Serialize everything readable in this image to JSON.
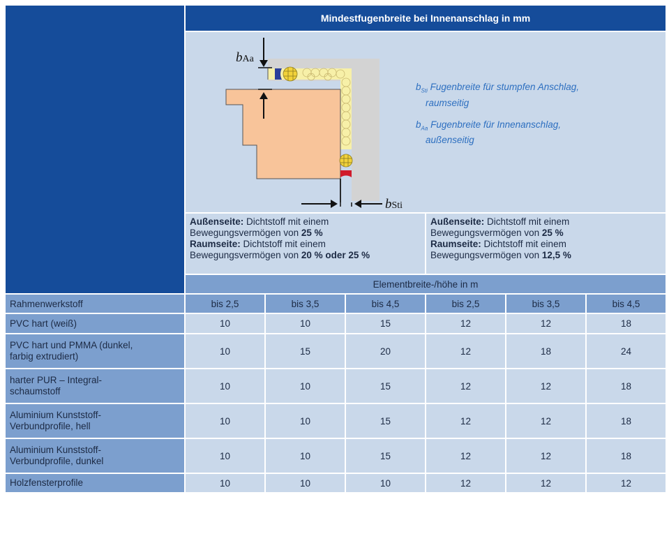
{
  "title": "Mindestfugenbreite bei Innenanschlag in mm",
  "figure": {
    "label_aa_base": "b",
    "label_aa_sub": "Aa",
    "label_sti_base": "b",
    "label_sti_sub": "Sti",
    "legend": [
      {
        "base": "b",
        "sub": "Sti",
        "line1": "Fugenbreite für stumpfen Anschlag,",
        "line2": "raumseitig"
      },
      {
        "base": "b",
        "sub": "Aa",
        "line1": "Fugenbreite für Innenanschlag,",
        "line2": "außenseitig"
      }
    ]
  },
  "groups": [
    {
      "out_label": "Außenseite:",
      "out_text": " Dichtstoff mit einem",
      "out_text2": "Bewegungsvermögen von ",
      "out_value": "25 %",
      "in_label": "Raumseite:",
      "in_text": " Dichtstoff mit einem",
      "in_text2": "Bewegungsvermögen von ",
      "in_value": "20 % oder 25 %"
    },
    {
      "out_label": "Außenseite:",
      "out_text": " Dichtstoff mit einem",
      "out_text2": "Bewegungsvermögen von ",
      "out_value": "25 %",
      "in_label": "Raumseite:",
      "in_text": " Dichtstoff mit einem",
      "in_text2": "Bewegungsvermögen von ",
      "in_value": "12,5 %"
    }
  ],
  "subheader": "Elementbreite-/höhe in m",
  "header": {
    "label": "Rahmenwerkstoff",
    "cols": [
      "bis 2,5",
      "bis 3,5",
      "bis 4,5",
      "bis 2,5",
      "bis 3,5",
      "bis 4,5"
    ]
  },
  "rows": [
    {
      "line1": "PVC hart (weiß)",
      "line2": "",
      "values": [
        "10",
        "10",
        "15",
        "12",
        "12",
        "18"
      ]
    },
    {
      "line1": "PVC hart und PMMA (dunkel,",
      "line2": "farbig extrudiert)",
      "values": [
        "10",
        "15",
        "20",
        "12",
        "18",
        "24"
      ]
    },
    {
      "line1": "harter PUR – Integral-",
      "line2": "schaumstoff",
      "values": [
        "10",
        "10",
        "15",
        "12",
        "12",
        "18"
      ]
    },
    {
      "line1": "Aluminium Kunststoff-",
      "line2": "Verbundprofile, hell",
      "values": [
        "10",
        "10",
        "15",
        "12",
        "12",
        "18"
      ]
    },
    {
      "line1": "Aluminium Kunststoff-",
      "line2": "Verbundprofile, dunkel",
      "values": [
        "10",
        "10",
        "15",
        "12",
        "12",
        "18"
      ]
    },
    {
      "line1": "Holzfensterprofile",
      "line2": "",
      "values": [
        "10",
        "10",
        "10",
        "12",
        "12",
        "12"
      ]
    }
  ],
  "colors": {
    "navy": "#154c9a",
    "light_blue": "#c9d8ea",
    "mid_blue": "#7c9fce",
    "frame": "#f8c49a",
    "wall": "#d3d3d3",
    "insulation": "#f7f0a8",
    "backer_rod": "#f2d23a",
    "sealant_outer": "#2b3f9a",
    "sealant_inner": "#d01a2a",
    "legend_text": "#2d6fc0"
  }
}
